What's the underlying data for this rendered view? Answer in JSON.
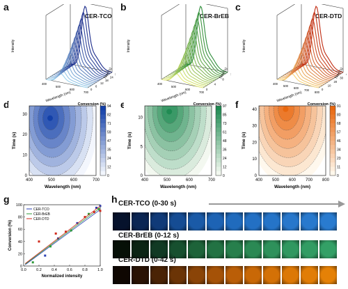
{
  "panels": {
    "a": {
      "letter": "a",
      "title": "CER-TCO",
      "zlabel": "Intensity",
      "xlabel": "Wavelength (nm)",
      "ylabel": "Time (s)",
      "xticks": [
        "400",
        "500",
        "600",
        "700"
      ],
      "yticks": [
        "0",
        "6",
        "12",
        "18",
        "24",
        "30"
      ],
      "color": "#1f3a9a"
    },
    "b": {
      "letter": "b",
      "title": "CER-BrEB",
      "zlabel": "Intensity",
      "xlabel": "Wavelength (nm)",
      "ylabel": "Time (s)",
      "xticks": [
        "400",
        "500",
        "600",
        "700"
      ],
      "yticks": [
        "0",
        "4",
        "8",
        "12"
      ],
      "color": "#3f9a2c"
    },
    "c": {
      "letter": "c",
      "title": "CER-DTD",
      "zlabel": "Intensity",
      "xlabel": "Wavelength (nm)",
      "ylabel": "Time (s)",
      "xticks": [
        "400",
        "500",
        "600",
        "700",
        "800"
      ],
      "yticks": [
        "0",
        "10",
        "20",
        "30",
        "40"
      ],
      "color": "#d44a10"
    },
    "d": {
      "letter": "d",
      "ylabel": "Time (s)",
      "xlabel": "Wavelength (nm)",
      "xticks": [
        "400",
        "500",
        "600",
        "700"
      ],
      "yticks": [
        "0",
        "10",
        "20",
        "30"
      ],
      "cbar_title": "Conversion (%)",
      "cbar_ticks": [
        "94",
        "82",
        "71",
        "59",
        "47",
        "35",
        "24",
        "12",
        "0"
      ]
    },
    "e": {
      "letter": "e",
      "ylabel": "Time (s)",
      "xlabel": "Wavelength (nm)",
      "xticks": [
        "400",
        "500",
        "600",
        "700"
      ],
      "yticks": [
        "0",
        "5",
        "10"
      ],
      "cbar_title": "Conversion (%)",
      "cbar_ticks": [
        "97",
        "85",
        "73",
        "61",
        "48",
        "36",
        "24",
        "12",
        "0"
      ]
    },
    "f": {
      "letter": "f",
      "ylabel": "Time (s)",
      "xlabel": "Wavelength (nm)",
      "xticks": [
        "400",
        "500",
        "600",
        "700",
        "800"
      ],
      "yticks": [
        "0",
        "10",
        "20",
        "30",
        "40"
      ],
      "cbar_title": "Conversion (%)",
      "cbar_ticks": [
        "91",
        "80",
        "68",
        "57",
        "46",
        "34",
        "23",
        "11",
        "0"
      ]
    },
    "g": {
      "letter": "g"
    },
    "h": {
      "letter": "h",
      "rows": [
        {
          "label": "CER-TCO (0-30 s)",
          "frames": [
            "#06122c",
            "#0a2553",
            "#103a78",
            "#154c93",
            "#1a5aa7",
            "#1d63b4",
            "#206bbd",
            "#2370c4",
            "#2574c8",
            "#2777cb",
            "#2879cd",
            "#297bcf"
          ]
        },
        {
          "label": "CER-BrEB (0-12 s)",
          "frames": [
            "#061007",
            "#0b2414",
            "#113a24",
            "#17502f",
            "#1d6339",
            "#227243",
            "#277f4c",
            "#2b8954",
            "#2e915b",
            "#309860",
            "#329c63",
            "#33a066"
          ]
        },
        {
          "label": "CER-DTD (0-42 s)",
          "frames": [
            "#0f0702",
            "#2a1304",
            "#4a2305",
            "#6b3406",
            "#8a4407",
            "#a55207",
            "#ba5e07",
            "#c96806",
            "#d47106",
            "#dc7806",
            "#e17d06",
            "#e58106"
          ]
        }
      ]
    }
  },
  "chart_data": [
    {
      "type": "surface3d",
      "title": "CER-TCO"
    },
    {
      "type": "surface3d",
      "title": "CER-BrEB"
    },
    {
      "type": "surface3d",
      "title": "CER-DTD"
    },
    {
      "type": "heatmap",
      "xlabel": "Wavelength (nm)",
      "ylabel": "Time (s)",
      "xlim": [
        380,
        700
      ],
      "ylim": [
        0,
        34
      ],
      "clim": [
        0,
        94
      ],
      "colorbar_title": "Conversion (%)",
      "peak_x": 480,
      "peak_y": 28
    },
    {
      "type": "heatmap",
      "xlabel": "Wavelength (nm)",
      "ylabel": "Time (s)",
      "xlim": [
        400,
        700
      ],
      "ylim": [
        0,
        12
      ],
      "clim": [
        0,
        97
      ],
      "colorbar_title": "Conversion (%)",
      "peak_x": 510,
      "peak_y": 11
    },
    {
      "type": "heatmap",
      "xlabel": "Wavelength (nm)",
      "ylabel": "Time (s)",
      "xlim": [
        400,
        800
      ],
      "ylim": [
        0,
        42
      ],
      "clim": [
        0,
        91
      ],
      "colorbar_title": "Conversion (%)",
      "peak_x": 560,
      "peak_y": 40
    },
    {
      "type": "scatter",
      "xlabel": "Normalized intensity",
      "ylabel": "Conversion (%)",
      "xlim": [
        0,
        1.0
      ],
      "ylim": [
        0,
        100
      ],
      "xticks": [
        "0.0",
        "0.2",
        "0.4",
        "0.6",
        "0.8",
        "1.0"
      ],
      "yticks": [
        "0",
        "20",
        "40",
        "60",
        "80",
        "100"
      ],
      "legend": "top-left",
      "series": [
        {
          "name": "CER-TCO",
          "color": "#2a3fb5",
          "x": [
            0.28,
            0.45,
            0.7,
            0.95,
            1.0
          ],
          "y": [
            17,
            45,
            70,
            95,
            98
          ]
        },
        {
          "name": "CER-BrEB",
          "color": "#2f9a3a",
          "x": [
            0.12,
            0.35,
            0.62,
            0.85,
            0.98
          ],
          "y": [
            6,
            32,
            58,
            85,
            93
          ]
        },
        {
          "name": "CER-DTD",
          "color": "#d0291b",
          "x": [
            0.2,
            0.42,
            0.55,
            0.8,
            0.92,
            1.0
          ],
          "y": [
            40,
            53,
            56,
            80,
            88,
            90
          ]
        }
      ]
    }
  ]
}
